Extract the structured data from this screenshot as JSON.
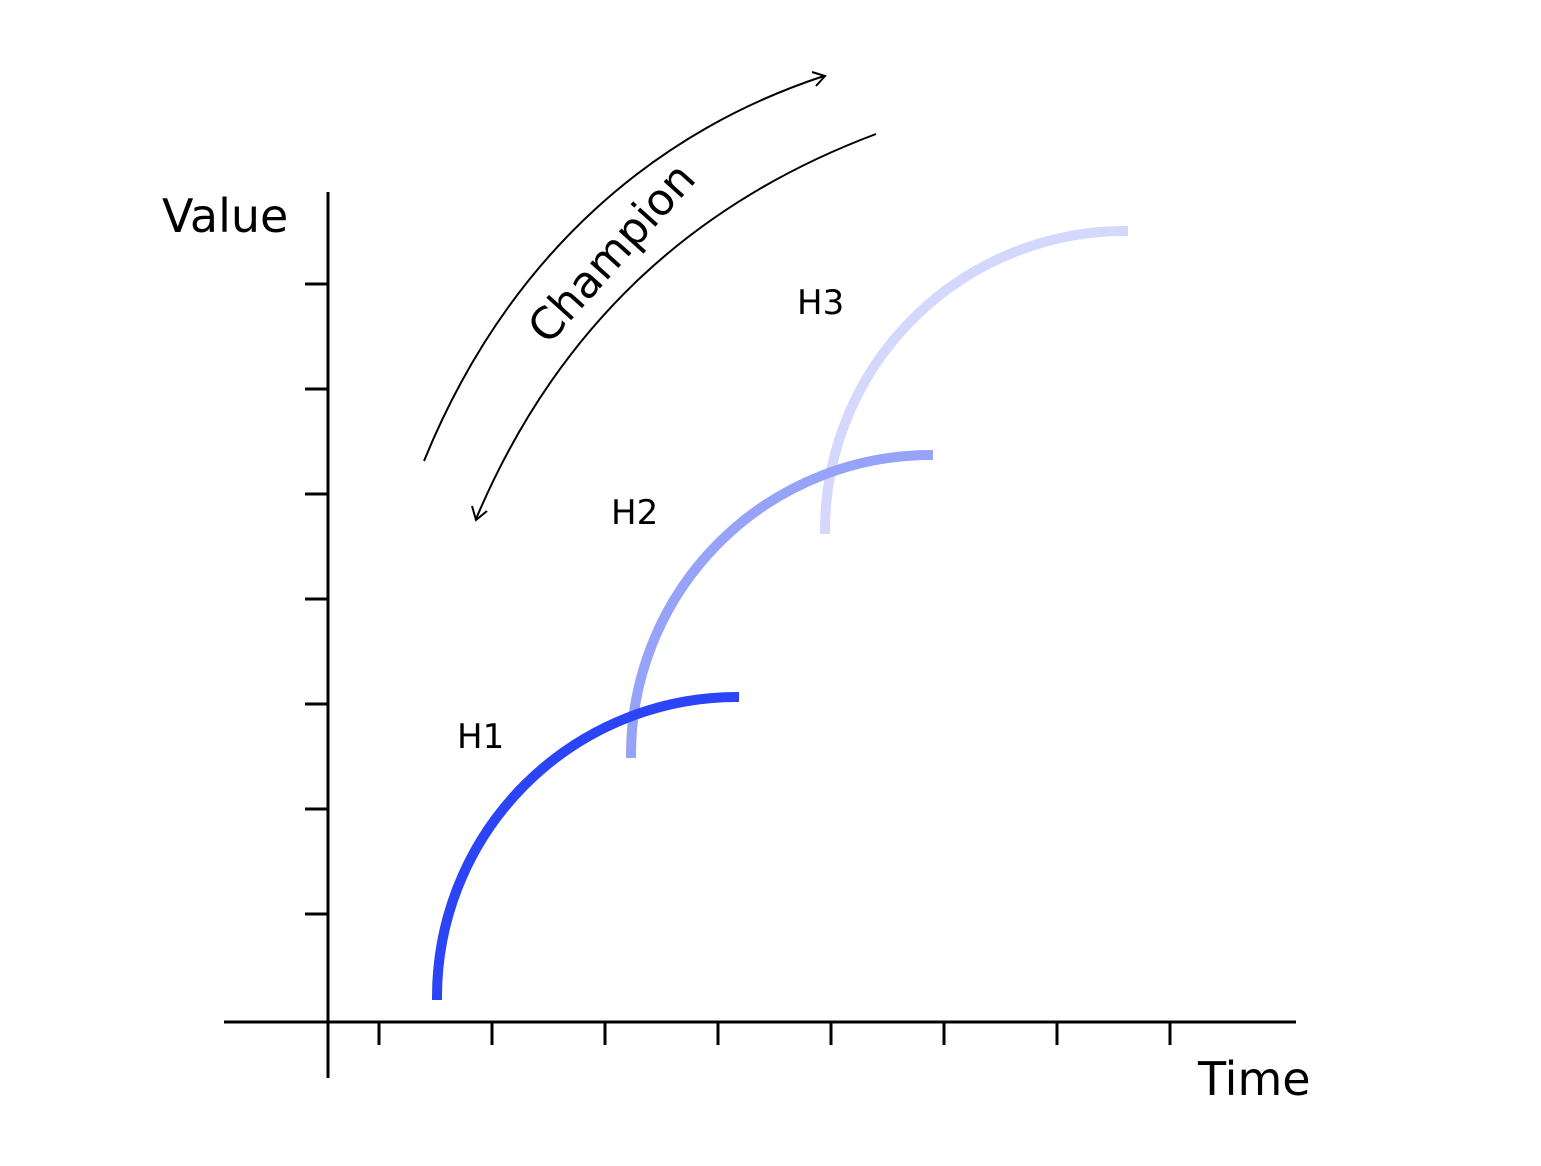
{
  "axes": {
    "y_label": "Value",
    "x_label": "Time"
  },
  "champion": {
    "label": "Champion"
  },
  "horizons": [
    {
      "id": "h1",
      "label": "H1",
      "color": "#2b44f5"
    },
    {
      "id": "h2",
      "label": "H2",
      "color": "#97a3f8"
    },
    {
      "id": "h3",
      "label": "H3",
      "color": "#d3d8fc"
    }
  ]
}
